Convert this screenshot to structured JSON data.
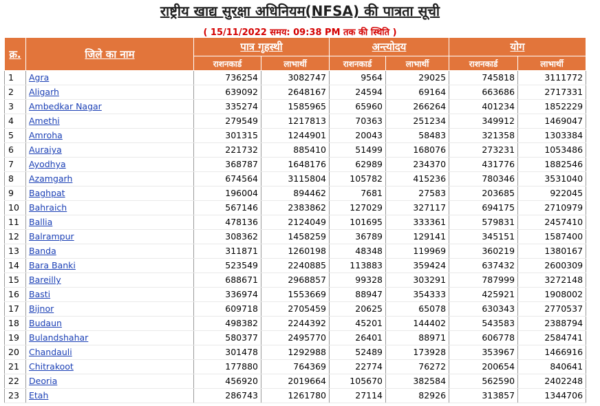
{
  "title": "राष्ट्रीय खाद्य सुरक्षा अधिनियम(NFSA) की पात्रता सूची",
  "subtitle": "( 15/11/2022 समय: 09:38 PM तक की स्थिति )",
  "headers": {
    "sn": "क्र.",
    "district": "जिले का नाम",
    "group1": "पात्र गृहस्थी",
    "group2": "अन्त्योदय",
    "group3": "योग",
    "ration_card": "राशनकार्ड",
    "beneficiary": "लाभार्थी"
  },
  "rows": [
    {
      "sn": "1",
      "district": "Agra",
      "pg_rc": "736254",
      "pg_lb": "3082747",
      "ay_rc": "9564",
      "ay_lb": "29025",
      "tot_rc": "745818",
      "tot_lb": "3111772"
    },
    {
      "sn": "2",
      "district": "Aligarh",
      "pg_rc": "639092",
      "pg_lb": "2648167",
      "ay_rc": "24594",
      "ay_lb": "69164",
      "tot_rc": "663686",
      "tot_lb": "2717331"
    },
    {
      "sn": "3",
      "district": "Ambedkar Nagar",
      "pg_rc": "335274",
      "pg_lb": "1585965",
      "ay_rc": "65960",
      "ay_lb": "266264",
      "tot_rc": "401234",
      "tot_lb": "1852229"
    },
    {
      "sn": "4",
      "district": "Amethi",
      "pg_rc": "279549",
      "pg_lb": "1217813",
      "ay_rc": "70363",
      "ay_lb": "251234",
      "tot_rc": "349912",
      "tot_lb": "1469047"
    },
    {
      "sn": "5",
      "district": "Amroha",
      "pg_rc": "301315",
      "pg_lb": "1244901",
      "ay_rc": "20043",
      "ay_lb": "58483",
      "tot_rc": "321358",
      "tot_lb": "1303384"
    },
    {
      "sn": "6",
      "district": "Auraiya",
      "pg_rc": "221732",
      "pg_lb": "885410",
      "ay_rc": "51499",
      "ay_lb": "168076",
      "tot_rc": "273231",
      "tot_lb": "1053486"
    },
    {
      "sn": "7",
      "district": "Ayodhya",
      "pg_rc": "368787",
      "pg_lb": "1648176",
      "ay_rc": "62989",
      "ay_lb": "234370",
      "tot_rc": "431776",
      "tot_lb": "1882546"
    },
    {
      "sn": "8",
      "district": "Azamgarh",
      "pg_rc": "674564",
      "pg_lb": "3115804",
      "ay_rc": "105782",
      "ay_lb": "415236",
      "tot_rc": "780346",
      "tot_lb": "3531040"
    },
    {
      "sn": "9",
      "district": "Baghpat",
      "pg_rc": "196004",
      "pg_lb": "894462",
      "ay_rc": "7681",
      "ay_lb": "27583",
      "tot_rc": "203685",
      "tot_lb": "922045"
    },
    {
      "sn": "10",
      "district": "Bahraich",
      "pg_rc": "567146",
      "pg_lb": "2383862",
      "ay_rc": "127029",
      "ay_lb": "327117",
      "tot_rc": "694175",
      "tot_lb": "2710979"
    },
    {
      "sn": "11",
      "district": "Ballia",
      "pg_rc": "478136",
      "pg_lb": "2124049",
      "ay_rc": "101695",
      "ay_lb": "333361",
      "tot_rc": "579831",
      "tot_lb": "2457410"
    },
    {
      "sn": "12",
      "district": "Balrampur",
      "pg_rc": "308362",
      "pg_lb": "1458259",
      "ay_rc": "36789",
      "ay_lb": "129141",
      "tot_rc": "345151",
      "tot_lb": "1587400"
    },
    {
      "sn": "13",
      "district": "Banda",
      "pg_rc": "311871",
      "pg_lb": "1260198",
      "ay_rc": "48348",
      "ay_lb": "119969",
      "tot_rc": "360219",
      "tot_lb": "1380167"
    },
    {
      "sn": "14",
      "district": "Bara Banki",
      "pg_rc": "523549",
      "pg_lb": "2240885",
      "ay_rc": "113883",
      "ay_lb": "359424",
      "tot_rc": "637432",
      "tot_lb": "2600309"
    },
    {
      "sn": "15",
      "district": "Bareilly",
      "pg_rc": "688671",
      "pg_lb": "2968857",
      "ay_rc": "99328",
      "ay_lb": "303291",
      "tot_rc": "787999",
      "tot_lb": "3272148"
    },
    {
      "sn": "16",
      "district": "Basti",
      "pg_rc": "336974",
      "pg_lb": "1553669",
      "ay_rc": "88947",
      "ay_lb": "354333",
      "tot_rc": "425921",
      "tot_lb": "1908002"
    },
    {
      "sn": "17",
      "district": "Bijnor",
      "pg_rc": "609718",
      "pg_lb": "2705459",
      "ay_rc": "20625",
      "ay_lb": "65078",
      "tot_rc": "630343",
      "tot_lb": "2770537"
    },
    {
      "sn": "18",
      "district": "Budaun",
      "pg_rc": "498382",
      "pg_lb": "2244392",
      "ay_rc": "45201",
      "ay_lb": "144402",
      "tot_rc": "543583",
      "tot_lb": "2388794"
    },
    {
      "sn": "19",
      "district": "Bulandshahar",
      "pg_rc": "580377",
      "pg_lb": "2495770",
      "ay_rc": "26401",
      "ay_lb": "88971",
      "tot_rc": "606778",
      "tot_lb": "2584741"
    },
    {
      "sn": "20",
      "district": "Chandauli",
      "pg_rc": "301478",
      "pg_lb": "1292988",
      "ay_rc": "52489",
      "ay_lb": "173928",
      "tot_rc": "353967",
      "tot_lb": "1466916"
    },
    {
      "sn": "21",
      "district": "Chitrakoot",
      "pg_rc": "177880",
      "pg_lb": "764369",
      "ay_rc": "22774",
      "ay_lb": "76272",
      "tot_rc": "200654",
      "tot_lb": "840641"
    },
    {
      "sn": "22",
      "district": "Deoria",
      "pg_rc": "456920",
      "pg_lb": "2019664",
      "ay_rc": "105670",
      "ay_lb": "382584",
      "tot_rc": "562590",
      "tot_lb": "2402248"
    },
    {
      "sn": "23",
      "district": "Etah",
      "pg_rc": "286743",
      "pg_lb": "1261780",
      "ay_rc": "27114",
      "ay_lb": "82926",
      "tot_rc": "313857",
      "tot_lb": "1344706"
    }
  ],
  "colors": {
    "header_bg": "#e2753b",
    "link": "#1a3fb5",
    "subtitle": "#d40000"
  }
}
